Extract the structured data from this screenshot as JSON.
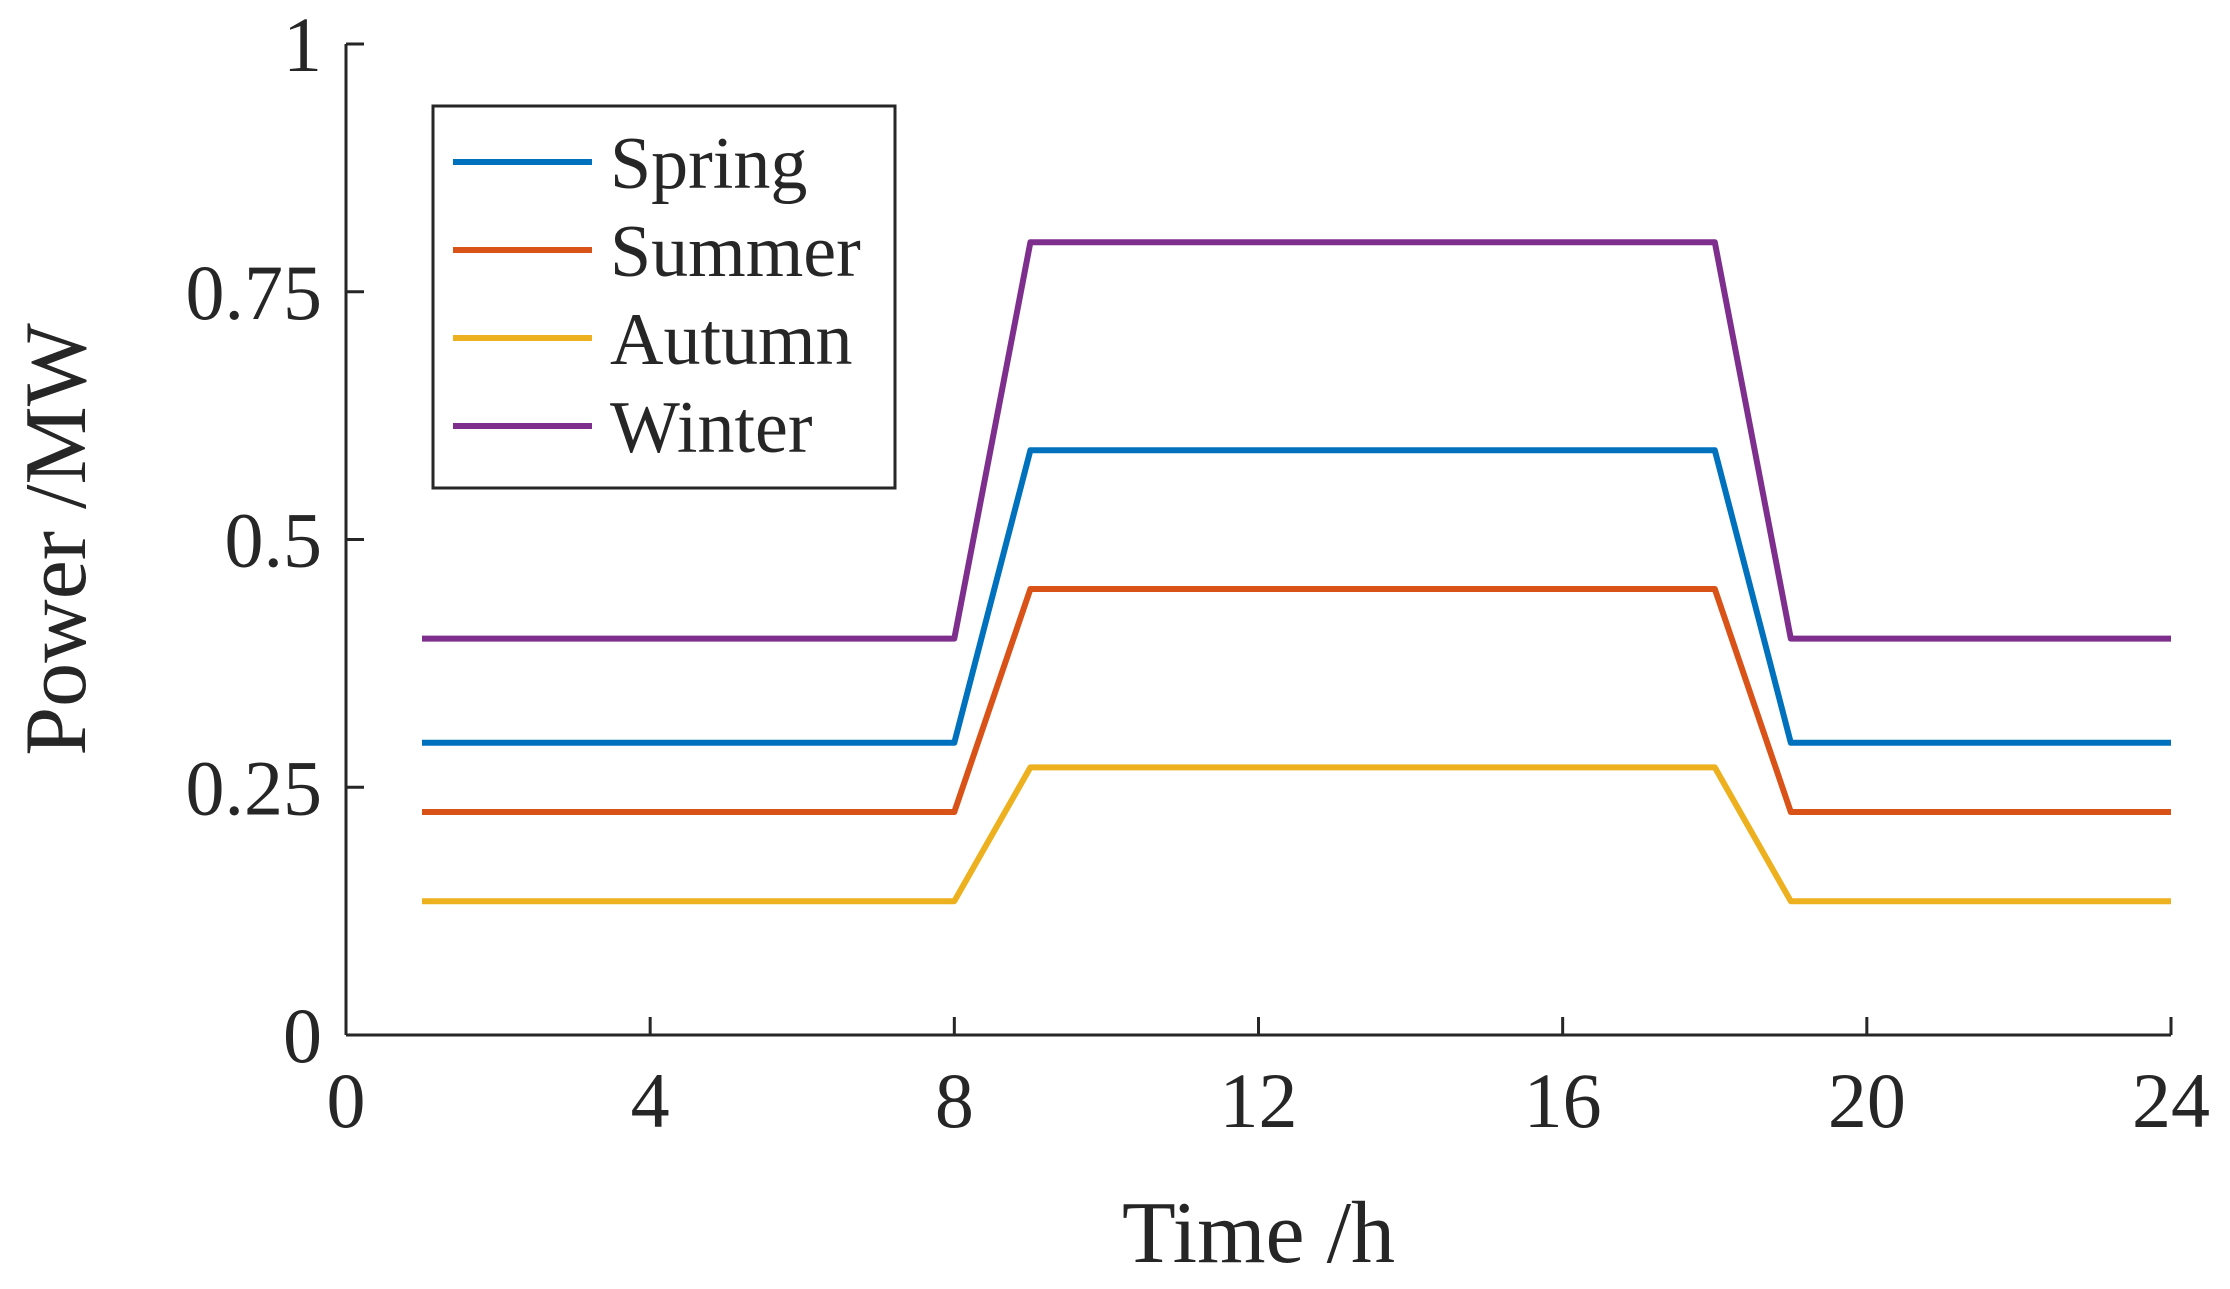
{
  "chart_data": {
    "type": "line",
    "title": "",
    "xlabel": "Time /h",
    "ylabel": "Power /MW",
    "xlim": [
      0,
      24
    ],
    "ylim": [
      0,
      1
    ],
    "xticks": [
      0,
      4,
      8,
      12,
      16,
      20,
      24
    ],
    "xtick_labels": [
      "0",
      "4",
      "8",
      "12",
      "16",
      "20",
      "24"
    ],
    "yticks": [
      0,
      0.25,
      0.5,
      0.75,
      1
    ],
    "ytick_labels": [
      "0",
      "0.25",
      "0.5",
      "0.75",
      "1"
    ],
    "grid": false,
    "legend_position": "top-left",
    "x": [
      1,
      2,
      3,
      4,
      5,
      6,
      7,
      8,
      9,
      10,
      11,
      12,
      13,
      14,
      15,
      16,
      17,
      18,
      19,
      20,
      21,
      22,
      23,
      24
    ],
    "series": [
      {
        "name": "Spring",
        "color": "#0072BD",
        "values": [
          0.295,
          0.295,
          0.295,
          0.295,
          0.295,
          0.295,
          0.295,
          0.295,
          0.59,
          0.59,
          0.59,
          0.59,
          0.59,
          0.59,
          0.59,
          0.59,
          0.59,
          0.59,
          0.295,
          0.295,
          0.295,
          0.295,
          0.295,
          0.295
        ]
      },
      {
        "name": "Summer",
        "color": "#D95319",
        "values": [
          0.225,
          0.225,
          0.225,
          0.225,
          0.225,
          0.225,
          0.225,
          0.225,
          0.45,
          0.45,
          0.45,
          0.45,
          0.45,
          0.45,
          0.45,
          0.45,
          0.45,
          0.45,
          0.225,
          0.225,
          0.225,
          0.225,
          0.225,
          0.225
        ]
      },
      {
        "name": "Autumn",
        "color": "#EDB120",
        "values": [
          0.135,
          0.135,
          0.135,
          0.135,
          0.135,
          0.135,
          0.135,
          0.135,
          0.27,
          0.27,
          0.27,
          0.27,
          0.27,
          0.27,
          0.27,
          0.27,
          0.27,
          0.27,
          0.135,
          0.135,
          0.135,
          0.135,
          0.135,
          0.135
        ]
      },
      {
        "name": "Winter",
        "color": "#7E2F8E",
        "values": [
          0.4,
          0.4,
          0.4,
          0.4,
          0.4,
          0.4,
          0.4,
          0.4,
          0.8,
          0.8,
          0.8,
          0.8,
          0.8,
          0.8,
          0.8,
          0.8,
          0.8,
          0.8,
          0.4,
          0.4,
          0.4,
          0.4,
          0.4,
          0.4
        ]
      }
    ]
  }
}
